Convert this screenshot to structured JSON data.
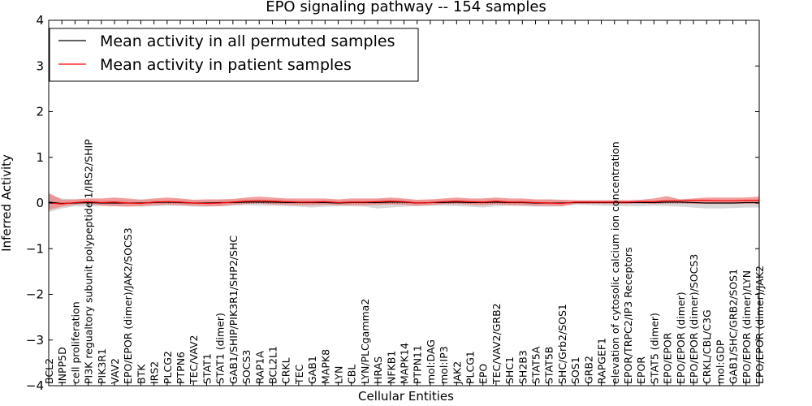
{
  "chart_data": {
    "type": "line",
    "title": "EPO signaling pathway -- 154 samples",
    "xlabel": "Cellular Entities",
    "ylabel": "Inferred Activity",
    "ylim": [
      -4,
      4
    ],
    "yticks": [
      4,
      3,
      2,
      1,
      0,
      -1,
      -2,
      -3,
      -4
    ],
    "ytick_labels": [
      "4",
      "3",
      "2",
      "1",
      "0",
      "−1",
      "−2",
      "−3",
      "−4"
    ],
    "grid": false,
    "legend_position": "top-left",
    "categories": [
      "BCL2",
      "INPP5D",
      "cell proliferation",
      "PI3K regualtory subunit polypeptide 1/IRS2/SHIP",
      "PIK3R1",
      "VAV2",
      "EPO/EPOR (dimer)/JAK2/SOCS3",
      "BTK",
      "IRS2",
      "PLCG2",
      "PTPN6",
      "TEC/VAV2",
      "STAT1",
      "STAT1 (dimer)",
      "GAB1/SHIP/PIK3R1/SHP2/SHC",
      "SOCS3",
      "RAP1A",
      "BCL2L1",
      "CRKL",
      "TEC",
      "GAB1",
      "MAPK8",
      "LYN",
      "CBL",
      "LYN/PLCgamma2",
      "HRAS",
      "NFKB1",
      "MAPK14",
      "PTPN11",
      "mol:DAG",
      "mol:IP3",
      "JAK2",
      "PLCG1",
      "EPO",
      "TEC/VAV2/GRB2",
      "SHC1",
      "SH2B3",
      "STAT5A",
      "STAT5B",
      "SHC/Grb2/SOS1",
      "SOS1",
      "GRB2",
      "RAPGEF1",
      "elevation of cytosolic calcium ion concentration",
      "EPOR/TRPC2/IP3 Receptors",
      "EPOR",
      "STAT5 (dimer)",
      "EPO/EPOR",
      "EPO/EPOR (dimer)",
      "EPO/EPOR (dimer)/SOCS3",
      "CRKL/CBL/C3G",
      "mol:GDP",
      "GAB1/SHC/GRB2/SOS1",
      "EPO/EPOR (dimer)/LYN",
      "EPO/EPOR (dimer)/JAK2"
    ],
    "series": [
      {
        "name": "Mean activity in all permuted samples",
        "color": "#000000",
        "band_color": "#c8c8c8",
        "values": [
          0.02,
          -0.01,
          0.0,
          0.01,
          0.0,
          0.0,
          0.0,
          0.0,
          0.01,
          0.02,
          0.01,
          0.0,
          0.0,
          0.01,
          0.01,
          0.02,
          0.02,
          0.02,
          0.01,
          0.01,
          0.01,
          0.01,
          0.0,
          0.01,
          0.01,
          0.01,
          0.02,
          0.02,
          0.0,
          0.01,
          0.01,
          0.02,
          0.01,
          0.01,
          0.02,
          0.01,
          0.01,
          0.0,
          0.0,
          0.0,
          0.01,
          0.01,
          0.01,
          0.01,
          0.01,
          0.01,
          0.01,
          0.02,
          0.02,
          0.01,
          0.0,
          0.0,
          0.0,
          0.01,
          0.01
        ],
        "lower": [
          -0.2,
          -0.12,
          -0.07,
          -0.08,
          -0.06,
          -0.07,
          -0.06,
          -0.08,
          -0.07,
          -0.06,
          -0.06,
          -0.08,
          -0.08,
          -0.07,
          -0.06,
          -0.05,
          -0.06,
          -0.06,
          -0.07,
          -0.08,
          -0.1,
          -0.08,
          -0.07,
          -0.07,
          -0.08,
          -0.12,
          -0.1,
          -0.08,
          -0.07,
          -0.06,
          -0.06,
          -0.07,
          -0.08,
          -0.1,
          -0.07,
          -0.06,
          -0.07,
          -0.08,
          -0.08,
          -0.07,
          -0.04,
          -0.05,
          -0.06,
          -0.07,
          -0.07,
          -0.07,
          -0.06,
          -0.07,
          -0.08,
          -0.1,
          -0.12,
          -0.12,
          -0.11,
          -0.1,
          -0.1
        ],
        "upper": [
          0.18,
          0.1,
          0.08,
          0.09,
          0.07,
          0.07,
          0.07,
          0.08,
          0.07,
          0.08,
          0.08,
          0.07,
          0.07,
          0.08,
          0.08,
          0.09,
          0.08,
          0.08,
          0.08,
          0.07,
          0.07,
          0.07,
          0.07,
          0.07,
          0.08,
          0.08,
          0.09,
          0.08,
          0.07,
          0.07,
          0.07,
          0.08,
          0.08,
          0.08,
          0.08,
          0.07,
          0.07,
          0.07,
          0.07,
          0.07,
          0.06,
          0.06,
          0.06,
          0.06,
          0.06,
          0.07,
          0.07,
          0.07,
          0.07,
          0.07,
          0.07,
          0.07,
          0.07,
          0.07,
          0.07
        ]
      },
      {
        "name": "Mean activity in patient samples",
        "color": "#ff0000",
        "band_color": "#f08080",
        "values": [
          0.0,
          -0.02,
          0.01,
          0.03,
          0.01,
          0.02,
          0.0,
          -0.01,
          0.02,
          0.03,
          0.02,
          0.0,
          -0.01,
          0.0,
          0.02,
          0.04,
          0.05,
          0.04,
          0.03,
          0.02,
          0.02,
          0.03,
          0.01,
          0.02,
          0.02,
          0.03,
          0.04,
          0.03,
          0.0,
          0.01,
          0.03,
          0.04,
          0.03,
          0.02,
          0.04,
          0.02,
          0.02,
          0.01,
          0.0,
          -0.01,
          0.02,
          0.02,
          0.02,
          0.02,
          0.02,
          0.03,
          0.03,
          0.05,
          0.05,
          0.06,
          0.06,
          0.05,
          0.05,
          0.06,
          0.06
        ],
        "lower": [
          -0.15,
          -0.08,
          -0.04,
          -0.02,
          -0.06,
          -0.07,
          -0.08,
          -0.07,
          -0.05,
          -0.04,
          -0.05,
          -0.06,
          -0.07,
          -0.07,
          -0.04,
          -0.02,
          -0.01,
          -0.03,
          -0.04,
          -0.05,
          -0.05,
          -0.04,
          -0.05,
          -0.05,
          -0.05,
          -0.04,
          -0.03,
          -0.04,
          -0.06,
          -0.05,
          -0.03,
          -0.02,
          -0.04,
          -0.05,
          -0.03,
          -0.05,
          -0.05,
          -0.06,
          -0.06,
          -0.07,
          -0.02,
          -0.02,
          -0.02,
          -0.02,
          -0.02,
          -0.01,
          -0.02,
          -0.01,
          -0.01,
          -0.02,
          -0.02,
          -0.02,
          -0.02,
          -0.02,
          -0.02
        ],
        "upper": [
          0.22,
          0.07,
          0.08,
          0.1,
          0.1,
          0.12,
          0.1,
          0.07,
          0.1,
          0.12,
          0.1,
          0.07,
          0.08,
          0.08,
          0.09,
          0.12,
          0.14,
          0.12,
          0.1,
          0.1,
          0.1,
          0.1,
          0.08,
          0.1,
          0.1,
          0.1,
          0.12,
          0.1,
          0.07,
          0.08,
          0.1,
          0.12,
          0.1,
          0.1,
          0.12,
          0.1,
          0.1,
          0.08,
          0.08,
          0.07,
          0.06,
          0.06,
          0.06,
          0.06,
          0.06,
          0.07,
          0.1,
          0.15,
          0.08,
          0.1,
          0.12,
          0.12,
          0.12,
          0.12,
          0.14
        ]
      }
    ]
  }
}
